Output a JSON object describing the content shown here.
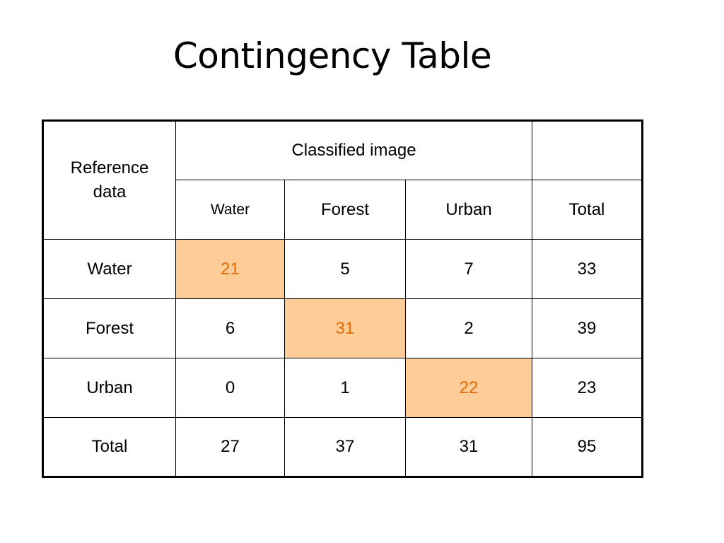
{
  "title": "Contingency Table",
  "table": {
    "corner_label": "Reference\ndata",
    "classified_header": "Classified image",
    "extra_header": "",
    "column_headers": [
      "Water",
      "Forest",
      "Urban",
      "Total"
    ],
    "rows": [
      {
        "label": "Water",
        "cells": [
          "21",
          "5",
          "7",
          "33"
        ]
      },
      {
        "label": "Forest",
        "cells": [
          "6",
          "31",
          "2",
          "39"
        ]
      },
      {
        "label": "Urban",
        "cells": [
          "0",
          "1",
          "22",
          "23"
        ]
      },
      {
        "label": "Total",
        "cells": [
          "27",
          "37",
          "31",
          "95"
        ]
      }
    ],
    "highlight_fill": "#fdcc97",
    "highlight_text": "#e36c09"
  }
}
